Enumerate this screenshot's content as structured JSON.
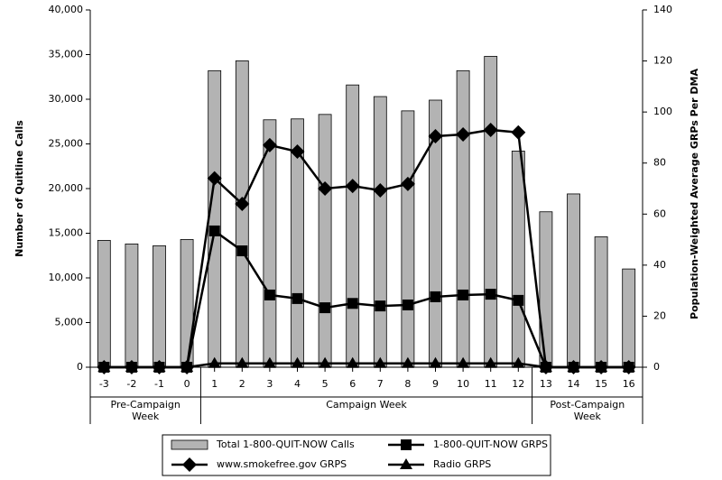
{
  "chart_data": {
    "type": "bar",
    "y_label": "Number of Quitline Calls",
    "y2_label": "Population-Weighted Average GRPs Per DMA",
    "categories": [
      "-3",
      "-2",
      "-1",
      "0",
      "1",
      "2",
      "3",
      "4",
      "5",
      "6",
      "7",
      "8",
      "9",
      "10",
      "11",
      "12",
      "13",
      "14",
      "15",
      "16"
    ],
    "groups": [
      {
        "lines": [
          "Pre-Campaign",
          "Week"
        ],
        "span": [
          0,
          3
        ]
      },
      {
        "lines": [
          "Campaign Week"
        ],
        "span": [
          4,
          15
        ]
      },
      {
        "lines": [
          "Post-Campaign",
          "Week"
        ],
        "span": [
          16,
          19
        ]
      }
    ],
    "ylim": [
      0,
      40000
    ],
    "yticks": [
      0,
      {
        "value": 5000,
        "label": "5,000"
      },
      {
        "value": 10000,
        "label": "10,000"
      },
      {
        "value": 15000,
        "label": "15,000"
      },
      {
        "value": 20000,
        "label": "20,000"
      },
      {
        "value": 25000,
        "label": "25,000"
      },
      {
        "value": 30000,
        "label": "30,000"
      },
      {
        "value": 35000,
        "label": "35,000"
      },
      {
        "value": 40000,
        "label": "40,000"
      }
    ],
    "y2lim": [
      0,
      140
    ],
    "y2ticks": [
      0,
      20,
      40,
      60,
      80,
      100,
      120,
      140
    ],
    "series": [
      {
        "name": "Total 1-800-QUIT-NOW Calls",
        "type": "bar",
        "color": "#b3b3b3",
        "values": [
          14200,
          13800,
          13600,
          14300,
          33200,
          34300,
          27700,
          27800,
          28300,
          31600,
          30300,
          28700,
          29900,
          33200,
          34800,
          24200,
          17400,
          19400,
          14600,
          11000
        ]
      },
      {
        "name": "1-800-QUIT-NOW GRPS",
        "type": "line",
        "axis": "y2",
        "color": "#000000",
        "marker": "square",
        "values": [
          0,
          0,
          0,
          0,
          53.4,
          45.6,
          28.3,
          26.9,
          23.3,
          25,
          24,
          24.4,
          27.6,
          28.3,
          28.6,
          26.2,
          0,
          0,
          0,
          0
        ]
      },
      {
        "name": "www.smokefree.gov GRPS",
        "type": "line",
        "axis": "y2",
        "color": "#000000",
        "marker": "diamond",
        "values": [
          0,
          0,
          0,
          0,
          74,
          64,
          87,
          84.5,
          70,
          71,
          69.3,
          71.8,
          90.5,
          91.2,
          93,
          92,
          0,
          0,
          0,
          0
        ]
      },
      {
        "name": "Radio GRPS",
        "type": "line",
        "axis": "y2",
        "color": "#000000",
        "marker": "triangle",
        "values": [
          0,
          0,
          0,
          0,
          1.5,
          1.5,
          1.5,
          1.5,
          1.5,
          1.5,
          1.5,
          1.5,
          1.5,
          1.5,
          1.5,
          1.5,
          0,
          0,
          0,
          0
        ]
      }
    ]
  }
}
